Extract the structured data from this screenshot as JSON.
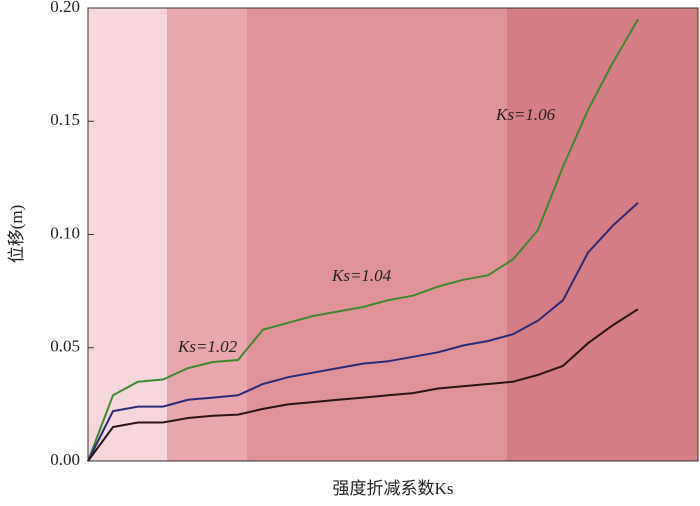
{
  "chart_data": {
    "type": "line",
    "y_label": "位移(m)",
    "x_label": "强度折减系数Ks",
    "annotations": [
      "Ks=1.02",
      "Ks=1.04",
      "Ks=1.06"
    ],
    "categories": [
      null,
      null,
      null,
      null,
      null,
      null,
      null,
      null,
      null,
      null,
      null,
      null,
      null,
      null,
      null,
      null,
      null,
      null,
      null,
      null,
      null,
      null,
      null
    ],
    "series": [
      {
        "color": "#3d8a2e",
        "values": [
          0,
          0.029,
          0.035,
          0.036,
          0.041,
          0.0437,
          0.0446,
          0.058,
          0.061,
          0.064,
          0.066,
          0.068,
          0.071,
          0.073,
          0.077,
          0.08,
          0.082,
          0.089,
          0.102,
          0.13,
          0.155,
          0.176,
          0.195
        ]
      },
      {
        "color": "#2b2a7a",
        "values": [
          0,
          0.022,
          0.024,
          0.024,
          0.027,
          0.028,
          0.029,
          0.034,
          0.037,
          0.039,
          0.041,
          0.043,
          0.044,
          0.046,
          0.048,
          0.051,
          0.053,
          0.056,
          0.062,
          0.071,
          0.092,
          0.104,
          0.114
        ]
      },
      {
        "color": "#2a1414",
        "values": [
          0,
          0.015,
          0.017,
          0.017,
          0.019,
          0.02,
          0.0205,
          0.023,
          0.025,
          0.026,
          0.027,
          0.028,
          0.029,
          0.03,
          0.032,
          0.033,
          0.034,
          0.035,
          0.038,
          0.042,
          0.052,
          0.06,
          0.067
        ]
      }
    ],
    "ylim": [
      0,
      0.2
    ],
    "yticks": [
      {
        "value": 0,
        "label": "0.00"
      },
      {
        "value": 0.05,
        "label": "0.05"
      },
      {
        "value": 0.1,
        "label": "0.10"
      },
      {
        "value": 0.15,
        "label": "0.15"
      },
      {
        "value": 0.2,
        "label": "0.20"
      }
    ]
  }
}
